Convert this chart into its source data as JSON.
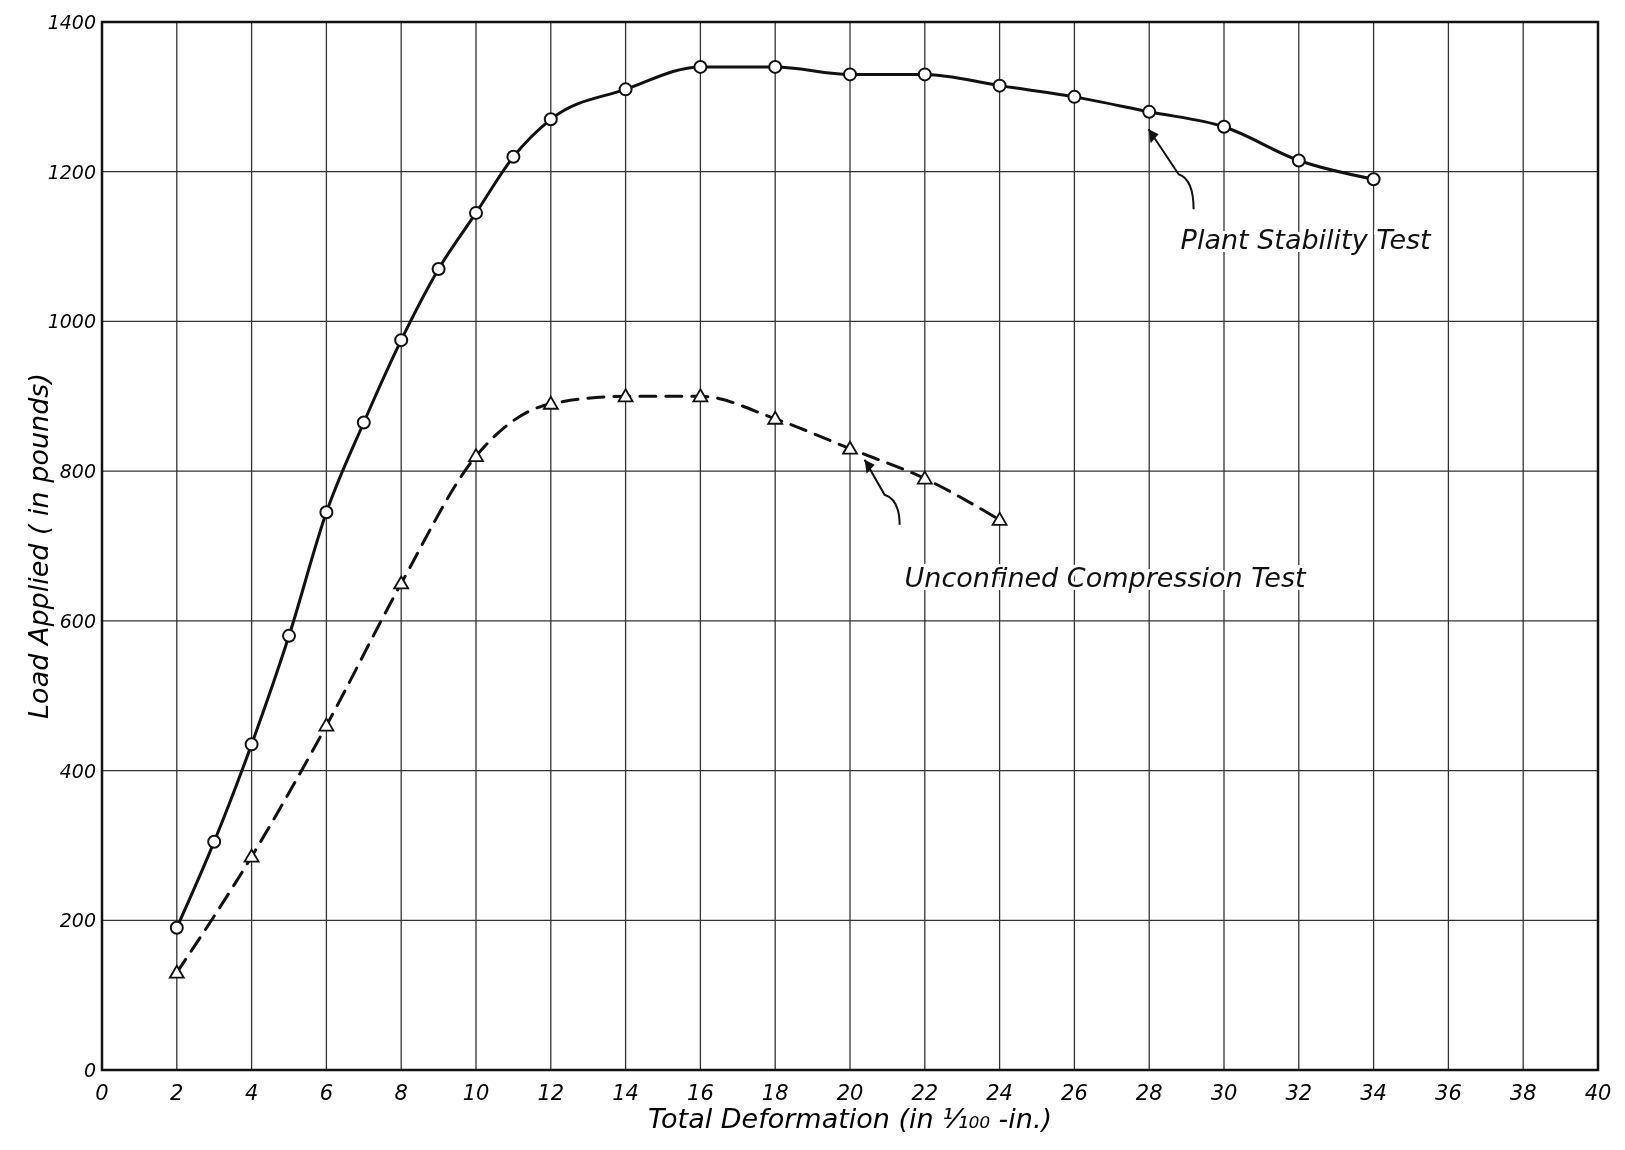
{
  "chart_data": {
    "type": "line",
    "xlabel": "Total Deformation (in ¹⁄₁₀₀ -in.)",
    "ylabel": "Load Applied ( in pounds)",
    "xlim": [
      0,
      40
    ],
    "xticks": [
      0,
      2,
      4,
      6,
      8,
      10,
      12,
      14,
      16,
      18,
      20,
      22,
      24,
      26,
      28,
      30,
      32,
      34,
      36,
      38,
      40
    ],
    "ylim": [
      0,
      1400
    ],
    "yticks": [
      0,
      200,
      400,
      600,
      800,
      1000,
      1200,
      1400
    ],
    "grid": true,
    "series": [
      {
        "name": "Plant Stability Test",
        "color": "#111111",
        "marker": "circle",
        "line_style": "solid",
        "x": [
          2,
          3,
          4,
          5,
          6,
          7,
          8,
          9,
          10,
          11,
          12,
          14,
          16,
          18,
          20,
          22,
          24,
          26,
          28,
          30,
          32,
          34
        ],
        "values": [
          190,
          305,
          435,
          580,
          745,
          865,
          975,
          1070,
          1145,
          1220,
          1270,
          1310,
          1340,
          1340,
          1330,
          1330,
          1315,
          1300,
          1280,
          1260,
          1215,
          1190
        ]
      },
      {
        "name": "Unconfined Compression Test",
        "color": "#111111",
        "marker": "triangle",
        "line_style": "dashed",
        "x": [
          2,
          4,
          6,
          8,
          10,
          12,
          14,
          16,
          18,
          20,
          22,
          24
        ],
        "values": [
          130,
          285,
          460,
          650,
          820,
          890,
          900,
          900,
          870,
          830,
          790,
          735
        ]
      }
    ]
  }
}
